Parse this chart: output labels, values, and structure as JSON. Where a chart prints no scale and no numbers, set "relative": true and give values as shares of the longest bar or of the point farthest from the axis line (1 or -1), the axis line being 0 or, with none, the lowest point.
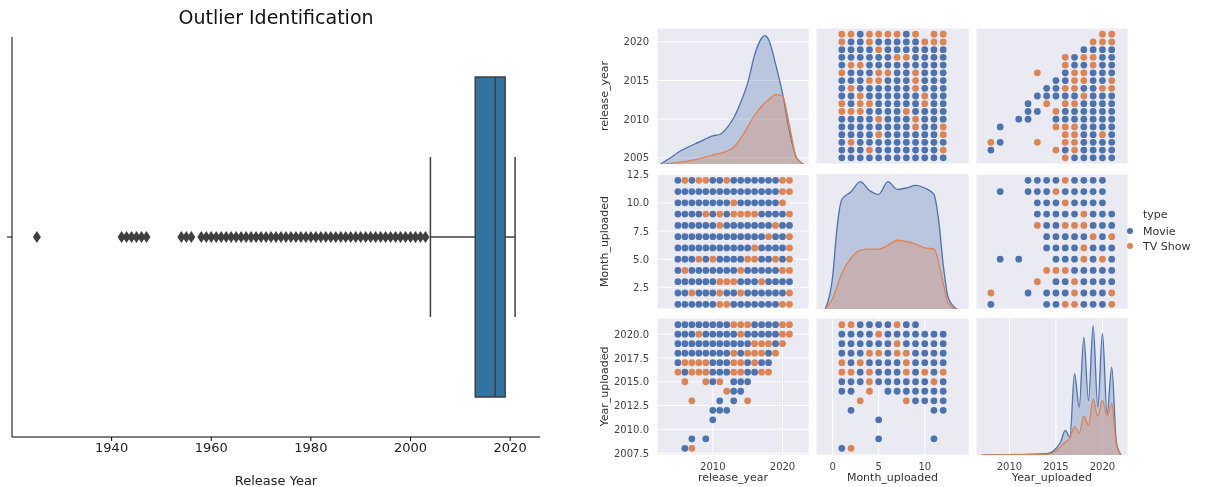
{
  "chart_data": [
    {
      "type": "box",
      "title": "Outlier Identification",
      "xlabel": "Release Year",
      "orientation": "horizontal",
      "categories": [
        null
      ],
      "color": "#3274a1",
      "xlim": [
        1920,
        2026
      ],
      "xticks": [
        1940,
        1960,
        1980,
        2000,
        2020
      ],
      "boxes": [
        {
          "low": 2004,
          "q1": 2013,
          "median": 2017,
          "q3": 2019,
          "high": 2021,
          "outliers": [
            1925,
            1942,
            1943,
            1944,
            1945,
            1946,
            1947,
            1954,
            1955,
            1956,
            1958,
            1959,
            1960,
            1961,
            1962,
            1963,
            1964,
            1965,
            1966,
            1967,
            1968,
            1969,
            1970,
            1971,
            1972,
            1973,
            1974,
            1975,
            1976,
            1977,
            1978,
            1979,
            1980,
            1981,
            1982,
            1983,
            1984,
            1985,
            1986,
            1987,
            1988,
            1989,
            1990,
            1991,
            1992,
            1993,
            1994,
            1995,
            1996,
            1997,
            1998,
            1999,
            2000,
            2001,
            2002,
            2003
          ]
        }
      ]
    },
    {
      "type": "area",
      "relative": true,
      "ylabel": "release_year",
      "xlim": [
        2002,
        2023.8
      ],
      "xticks": [
        2010,
        2020
      ],
      "y2lim": [
        2004.2,
        2021.8
      ],
      "y2ticks": [
        2005,
        2010,
        2015,
        2020
      ],
      "tick_labels": "y",
      "grid": true,
      "series": [
        {
          "color": "#4c72b0",
          "x": [
            2002.5,
            2004,
            2005,
            2006,
            2008,
            2010,
            2011,
            2012,
            2013,
            2014,
            2015,
            2016,
            2017,
            2017.5,
            2018,
            2019,
            2020,
            2021,
            2022,
            2023
          ],
          "values": [
            0,
            0.05,
            0.09,
            0.12,
            0.17,
            0.22,
            0.23,
            0.28,
            0.36,
            0.48,
            0.63,
            0.85,
            0.98,
            1,
            0.97,
            0.78,
            0.55,
            0.25,
            0.05,
            0
          ]
        },
        {
          "color": "#dd8452",
          "x": [
            2003,
            2005,
            2008,
            2010,
            2012,
            2013,
            2014,
            2015,
            2016,
            2017,
            2018,
            2019,
            2020,
            2021,
            2022,
            2023
          ],
          "values": [
            0,
            0.01,
            0.04,
            0.07,
            0.1,
            0.13,
            0.2,
            0.29,
            0.38,
            0.45,
            0.5,
            0.54,
            0.53,
            0.3,
            0.05,
            0
          ]
        }
      ]
    },
    {
      "type": "scatter",
      "marker": "circle",
      "xlim": [
        -1.8,
        14.8
      ],
      "xticks": [
        0,
        5,
        10
      ],
      "ylim": [
        2004.2,
        2021.8
      ],
      "yticks": [
        2005,
        2010,
        2015,
        2020
      ],
      "tick_labels": false,
      "grid": true,
      "series": [
        {
          "color": "#4c72b0",
          "x": [
            3,
            8,
            2,
            3,
            5,
            6,
            7,
            8,
            9,
            1,
            2,
            3,
            4,
            6,
            7,
            8,
            9,
            10,
            11,
            12,
            1,
            2,
            3,
            4,
            5,
            6,
            9,
            10,
            11,
            12,
            1,
            4,
            5,
            6,
            7,
            8,
            9,
            10,
            11,
            12,
            2,
            3,
            4,
            7,
            8,
            10,
            11,
            12,
            1,
            2,
            3,
            6,
            7,
            8,
            10,
            11,
            12,
            1,
            3,
            4,
            5,
            6,
            7,
            8,
            10,
            11,
            12,
            1,
            2,
            4,
            5,
            6,
            7,
            8,
            9,
            11,
            12,
            2,
            5,
            6,
            7,
            8,
            9,
            11,
            12,
            4,
            5,
            6,
            7,
            9,
            10,
            11,
            12,
            1,
            2,
            3,
            4,
            6,
            7,
            8,
            10,
            11,
            12,
            1,
            2,
            3,
            4,
            5,
            6,
            7,
            8,
            10,
            11,
            1,
            2,
            3,
            4,
            6,
            7,
            8,
            9,
            10,
            11,
            1,
            3,
            4,
            5,
            6,
            7,
            8,
            9,
            10,
            11,
            12,
            1,
            2,
            3,
            5,
            6,
            7,
            8,
            9,
            10,
            11,
            1,
            2,
            3,
            4,
            5,
            6,
            7,
            8,
            9,
            10,
            11,
            12
          ],
          "values": [
            2021,
            2021,
            2020,
            2020,
            2020,
            2020,
            2020,
            2020,
            2020,
            2019,
            2019,
            2019,
            2019,
            2019,
            2019,
            2019,
            2019,
            2019,
            2019,
            2019,
            2018,
            2018,
            2018,
            2018,
            2018,
            2018,
            2018,
            2018,
            2018,
            2018,
            2017,
            2017,
            2017,
            2017,
            2017,
            2017,
            2017,
            2017,
            2017,
            2017,
            2016,
            2016,
            2016,
            2016,
            2016,
            2016,
            2016,
            2016,
            2015,
            2015,
            2015,
            2015,
            2015,
            2015,
            2015,
            2015,
            2015,
            2014,
            2014,
            2014,
            2014,
            2014,
            2014,
            2014,
            2014,
            2014,
            2014,
            2013,
            2013,
            2013,
            2013,
            2013,
            2013,
            2013,
            2013,
            2013,
            2013,
            2012,
            2012,
            2012,
            2012,
            2012,
            2012,
            2012,
            2012,
            2011,
            2011,
            2011,
            2011,
            2011,
            2011,
            2011,
            2011,
            2010,
            2010,
            2010,
            2010,
            2010,
            2010,
            2010,
            2010,
            2010,
            2010,
            2009,
            2009,
            2009,
            2009,
            2009,
            2009,
            2009,
            2009,
            2009,
            2009,
            2008,
            2008,
            2008,
            2008,
            2008,
            2008,
            2008,
            2008,
            2008,
            2008,
            2007,
            2007,
            2007,
            2007,
            2007,
            2007,
            2007,
            2007,
            2007,
            2007,
            2007,
            2006,
            2006,
            2006,
            2006,
            2006,
            2006,
            2006,
            2006,
            2006,
            2006,
            2005,
            2005,
            2005,
            2005,
            2005,
            2005,
            2005,
            2005,
            2005,
            2005,
            2005,
            2005
          ]
        },
        {
          "color": "#dd8452",
          "x": [
            1,
            2,
            4,
            5,
            6,
            7,
            9,
            11,
            12,
            1,
            4,
            10,
            11,
            12,
            5,
            7,
            8,
            2,
            3,
            1,
            5,
            6,
            9,
            4,
            5,
            9,
            2,
            9,
            3,
            10,
            1,
            3,
            4,
            10,
            1,
            2,
            3,
            8,
            5,
            9,
            9,
            12,
            5,
            12,
            2,
            4,
            12
          ],
          "values": [
            2021,
            2021,
            2021,
            2021,
            2021,
            2021,
            2021,
            2021,
            2021,
            2020,
            2020,
            2020,
            2020,
            2020,
            2019,
            2018,
            2018,
            2017,
            2017,
            2016,
            2016,
            2016,
            2016,
            2015,
            2015,
            2015,
            2014,
            2014,
            2013,
            2013,
            2012,
            2012,
            2012,
            2012,
            2011,
            2011,
            2011,
            2011,
            2010,
            2010,
            2009,
            2009,
            2008,
            2008,
            2007,
            2006,
            2006
          ]
        }
      ]
    },
    {
      "type": "scatter",
      "marker": "circle",
      "xlim": [
        2006.4,
        2022.75
      ],
      "xticks": [
        2010,
        2015,
        2020
      ],
      "ylim": [
        2004.2,
        2021.8
      ],
      "yticks": [
        2005,
        2010,
        2015,
        2020
      ],
      "tick_labels": false,
      "grid": true,
      "series": [
        {
          "color": "#4c72b0",
          "x": [
            2018,
            2019,
            2020,
            2021,
            2017,
            2020,
            2021,
            2017,
            2018,
            2020,
            2021,
            2016,
            2019,
            2020,
            2021,
            2015,
            2016,
            2019,
            2020,
            2014,
            2015,
            2018,
            2019,
            2013,
            2014,
            2015,
            2016,
            2017,
            2019,
            2020,
            2021,
            2012,
            2018,
            2019,
            2020,
            2021,
            2012,
            2013,
            2016,
            2017,
            2018,
            2019,
            2020,
            2021,
            2011,
            2012,
            2015,
            2016,
            2017,
            2018,
            2019,
            2020,
            2021,
            2009,
            2018,
            2019,
            2020,
            2021,
            2018,
            2019,
            2021,
            2009,
            2018,
            2019,
            2020,
            2021,
            2008,
            2016,
            2018,
            2019,
            2020,
            2021,
            2017,
            2018,
            2019,
            2020,
            2021
          ],
          "values": [
            2019,
            2019,
            2019,
            2019,
            2018,
            2018,
            2018,
            2017,
            2017,
            2017,
            2017,
            2016,
            2016,
            2016,
            2016,
            2015,
            2015,
            2015,
            2015,
            2014,
            2014,
            2014,
            2014,
            2013,
            2013,
            2013,
            2013,
            2013,
            2013,
            2013,
            2013,
            2012,
            2012,
            2012,
            2012,
            2012,
            2011,
            2011,
            2011,
            2011,
            2011,
            2011,
            2011,
            2011,
            2010,
            2010,
            2010,
            2010,
            2010,
            2010,
            2010,
            2010,
            2010,
            2009,
            2009,
            2009,
            2009,
            2009,
            2008,
            2008,
            2008,
            2007,
            2007,
            2007,
            2007,
            2007,
            2006,
            2006,
            2006,
            2006,
            2006,
            2006,
            2005,
            2005,
            2005,
            2005,
            2005
          ]
        },
        {
          "color": "#dd8452",
          "x": [
            2020,
            2021,
            2019,
            2020,
            2021,
            2016,
            2018,
            2019,
            2016,
            2019,
            2013,
            2017,
            2018,
            2017,
            2018,
            2021,
            2016,
            2017,
            2020,
            2021,
            2018,
            2014,
            2016,
            2017,
            2015,
            2015,
            2016,
            2017,
            2016,
            2017,
            2020,
            2008,
            2013,
            2016,
            2017,
            2015,
            2017,
            2016
          ],
          "values": [
            2021,
            2021,
            2020,
            2020,
            2020,
            2018,
            2018,
            2018,
            2017,
            2017,
            2016,
            2016,
            2016,
            2015,
            2015,
            2015,
            2014,
            2014,
            2014,
            2014,
            2013,
            2012,
            2012,
            2012,
            2011,
            2009,
            2009,
            2009,
            2008,
            2008,
            2008,
            2007,
            2007,
            2007,
            2007,
            2006,
            2006,
            2005
          ]
        }
      ]
    },
    {
      "type": "scatter",
      "marker": "circle",
      "ylabel": "Month_uploaded",
      "xlim": [
        2002,
        2023.8
      ],
      "xticks": [
        2010,
        2020
      ],
      "ylim": [
        0.58,
        12.56
      ],
      "yticks": [
        2.5,
        {
          "value": 5,
          "label": "5.0"
        },
        7.5,
        {
          "value": 10,
          "label": "10.0"
        },
        12.5
      ],
      "tick_labels": "y",
      "grid": true,
      "series": [
        {
          "color": "#4c72b0",
          "x": [
            2005,
            2007,
            2010,
            2011,
            2013,
            2014,
            2015,
            2016,
            2017,
            2018,
            2019,
            2005,
            2006,
            2007,
            2008,
            2009,
            2010,
            2011,
            2012,
            2013,
            2014,
            2015,
            2016,
            2017,
            2018,
            2019,
            2005,
            2006,
            2007,
            2008,
            2009,
            2010,
            2011,
            2012,
            2014,
            2015,
            2016,
            2017,
            2018,
            2019,
            2005,
            2006,
            2007,
            2008,
            2010,
            2012,
            2017,
            2018,
            2019,
            2020,
            2005,
            2006,
            2007,
            2008,
            2009,
            2010,
            2012,
            2013,
            2014,
            2015,
            2016,
            2017,
            2018,
            2020,
            2021,
            2005,
            2006,
            2007,
            2008,
            2009,
            2010,
            2011,
            2012,
            2013,
            2014,
            2015,
            2016,
            2017,
            2019,
            2020,
            2005,
            2006,
            2007,
            2008,
            2009,
            2010,
            2011,
            2012,
            2013,
            2014,
            2015,
            2017,
            2018,
            2019,
            2020,
            2005,
            2006,
            2007,
            2009,
            2011,
            2012,
            2013,
            2014,
            2017,
            2018,
            2020,
            2005,
            2007,
            2008,
            2009,
            2010,
            2011,
            2012,
            2013,
            2015,
            2016,
            2017,
            2018,
            2019,
            2005,
            2006,
            2007,
            2008,
            2009,
            2010,
            2014,
            2015,
            2016,
            2018,
            2019,
            2020,
            2021,
            2005,
            2006,
            2008,
            2009,
            2010,
            2012,
            2013,
            2015,
            2016,
            2017,
            2018,
            2019,
            2020,
            2005,
            2006,
            2007,
            2008,
            2009,
            2010,
            2013,
            2014,
            2015,
            2016,
            2017,
            2018,
            2019
          ],
          "values": [
            12,
            12,
            12,
            12,
            12,
            12,
            12,
            12,
            12,
            12,
            12,
            11,
            11,
            11,
            11,
            11,
            11,
            11,
            11,
            11,
            11,
            11,
            11,
            11,
            11,
            11,
            10,
            10,
            10,
            10,
            10,
            10,
            10,
            10,
            10,
            10,
            10,
            10,
            10,
            10,
            9,
            9,
            9,
            9,
            9,
            9,
            9,
            9,
            9,
            9,
            8,
            8,
            8,
            8,
            8,
            8,
            8,
            8,
            8,
            8,
            8,
            8,
            8,
            8,
            8,
            7,
            7,
            7,
            7,
            7,
            7,
            7,
            7,
            7,
            7,
            7,
            7,
            7,
            7,
            7,
            6,
            6,
            6,
            6,
            6,
            6,
            6,
            6,
            6,
            6,
            6,
            6,
            6,
            6,
            6,
            5,
            5,
            5,
            5,
            5,
            5,
            5,
            5,
            5,
            5,
            5,
            4,
            4,
            4,
            4,
            4,
            4,
            4,
            4,
            4,
            4,
            4,
            4,
            4,
            3,
            3,
            3,
            3,
            3,
            3,
            3,
            3,
            3,
            3,
            3,
            3,
            3,
            2,
            2,
            2,
            2,
            2,
            2,
            2,
            2,
            2,
            2,
            2,
            2,
            2,
            1,
            1,
            1,
            1,
            1,
            1,
            1,
            1,
            1,
            1,
            1,
            1,
            1
          ]
        },
        {
          "color": "#dd8452",
          "x": [
            2006,
            2008,
            2009,
            2012,
            2020,
            2021,
            2020,
            2021,
            2013,
            2020,
            2009,
            2011,
            2013,
            2014,
            2015,
            2016,
            2021,
            2011,
            2019,
            2018,
            2021,
            2016,
            2021,
            2008,
            2010,
            2015,
            2016,
            2019,
            2021,
            2006,
            2014,
            2020,
            2021,
            2011,
            2012,
            2013,
            2017,
            2007,
            2011,
            2014,
            2021,
            2011,
            2012,
            2020,
            2021
          ],
          "values": [
            12,
            12,
            12,
            12,
            12,
            12,
            11,
            11,
            10,
            10,
            9,
            9,
            9,
            9,
            9,
            9,
            9,
            8,
            8,
            7,
            7,
            6,
            6,
            5,
            5,
            5,
            5,
            5,
            5,
            4,
            4,
            4,
            4,
            3,
            3,
            3,
            3,
            2,
            2,
            2,
            2,
            1,
            1,
            1,
            1
          ]
        }
      ]
    },
    {
      "type": "area",
      "relative": true,
      "xlim": [
        -1.8,
        14.8
      ],
      "xticks": [
        0,
        5,
        10
      ],
      "tick_labels": false,
      "grid": "x",
      "series": [
        {
          "color": "#4c72b0",
          "x": [
            -0.8,
            0,
            0.5,
            1,
            2,
            3,
            4,
            5,
            6,
            7,
            8,
            9,
            10,
            11,
            11.5,
            12,
            12.5,
            13,
            13.5
          ],
          "values": [
            0,
            0.25,
            0.65,
            0.86,
            0.92,
            1,
            0.93,
            0.9,
            1,
            0.94,
            0.95,
            0.97,
            0.95,
            0.9,
            0.7,
            0.35,
            0.1,
            0.03,
            0
          ]
        },
        {
          "color": "#dd8452",
          "x": [
            -0.8,
            0,
            1,
            2,
            3,
            4,
            5,
            6,
            7,
            8,
            9,
            10,
            11,
            12,
            12.5,
            13,
            13.5
          ],
          "values": [
            0,
            0.08,
            0.28,
            0.4,
            0.46,
            0.47,
            0.47,
            0.5,
            0.54,
            0.53,
            0.51,
            0.48,
            0.47,
            0.2,
            0.05,
            0.01,
            0
          ]
        }
      ]
    },
    {
      "type": "scatter",
      "marker": "circle",
      "legend": "right",
      "legend_title": "type",
      "xlim": [
        2006.4,
        2022.75
      ],
      "xticks": [
        2010,
        2015,
        2020
      ],
      "ylim": [
        0.58,
        12.56
      ],
      "yticks": [
        2.5,
        5,
        7.5,
        10,
        12.5
      ],
      "tick_labels": false,
      "grid": true,
      "series": [
        {
          "name": "Movie",
          "color": "#4c72b0",
          "x": [
            2012,
            2013,
            2014,
            2015,
            2017,
            2018,
            2019,
            2020,
            2009,
            2012,
            2013,
            2014,
            2016,
            2017,
            2018,
            2019,
            2020,
            2013,
            2014,
            2015,
            2017,
            2018,
            2019,
            2020,
            2013,
            2014,
            2015,
            2016,
            2017,
            2019,
            2020,
            2021,
            2014,
            2015,
            2019,
            2020,
            2021,
            2014,
            2015,
            2016,
            2017,
            2018,
            2020,
            2014,
            2015,
            2016,
            2017,
            2019,
            2020,
            2021,
            2009,
            2011,
            2015,
            2016,
            2017,
            2019,
            2021,
            2017,
            2018,
            2019,
            2020,
            2021,
            2015,
            2016,
            2018,
            2019,
            2020,
            2021,
            2012,
            2014,
            2015,
            2016,
            2018,
            2019,
            2020,
            2008,
            2014,
            2015,
            2018,
            2019,
            2020
          ],
          "values": [
            12,
            12,
            12,
            12,
            12,
            12,
            12,
            12,
            11,
            11,
            11,
            11,
            11,
            11,
            11,
            11,
            11,
            10,
            10,
            10,
            10,
            10,
            10,
            10,
            9,
            9,
            9,
            9,
            9,
            9,
            9,
            9,
            8,
            8,
            8,
            8,
            8,
            7,
            7,
            7,
            7,
            7,
            7,
            6,
            6,
            6,
            6,
            6,
            6,
            6,
            5,
            5,
            5,
            5,
            5,
            5,
            5,
            4,
            4,
            4,
            4,
            4,
            3,
            3,
            3,
            3,
            3,
            3,
            2,
            2,
            2,
            2,
            2,
            2,
            2,
            1,
            1,
            1,
            1,
            1,
            1
          ]
        },
        {
          "name": "TV Show",
          "color": "#dd8452",
          "x": [
            2016,
            2015,
            2016,
            2018,
            2013,
            2016,
            2017,
            2018,
            2019,
            2021,
            2018,
            2018,
            2020,
            2014,
            2015,
            2016,
            2013,
            2017,
            2008,
            2017,
            2021,
            2016,
            2017,
            2021
          ],
          "values": [
            12,
            11,
            10,
            9,
            8,
            8,
            8,
            8,
            7,
            7,
            6,
            5,
            5,
            4,
            4,
            4,
            3,
            3,
            2,
            2,
            2,
            1,
            1,
            1
          ]
        }
      ]
    },
    {
      "type": "scatter",
      "marker": "circle",
      "xlabel": "release_year",
      "ylabel": "Year_uploaded",
      "xlim": [
        2002,
        2023.8
      ],
      "xticks": [
        2010,
        2020
      ],
      "ylim": [
        2007.3,
        2021.7
      ],
      "yticks": [
        2007.5,
        {
          "value": 2010,
          "label": "2010.0"
        },
        2012.5,
        {
          "value": 2015,
          "label": "2015.0"
        },
        2017.5,
        {
          "value": 2020,
          "label": "2020.0"
        }
      ],
      "grid": true,
      "series": [
        {
          "color": "#4c72b0",
          "x": [
            2005,
            2006,
            2007,
            2008,
            2009,
            2010,
            2011,
            2012,
            2016,
            2017,
            2018,
            2019,
            2005,
            2006,
            2007,
            2009,
            2010,
            2011,
            2012,
            2013,
            2015,
            2016,
            2017,
            2018,
            2019,
            2005,
            2006,
            2007,
            2008,
            2009,
            2010,
            2011,
            2012,
            2013,
            2014,
            2015,
            2019,
            2005,
            2006,
            2007,
            2008,
            2009,
            2010,
            2011,
            2012,
            2014,
            2018,
            2005,
            2010,
            2011,
            2012,
            2015,
            2017,
            2018,
            2006,
            2010,
            2011,
            2012,
            2015,
            2016,
            2010,
            2013,
            2014,
            2015,
            2013,
            2014,
            2011,
            2013,
            2010,
            2011,
            2012,
            2010,
            2007,
            2009,
            2006
          ],
          "values": [
            2021,
            2021,
            2021,
            2021,
            2021,
            2021,
            2021,
            2021,
            2021,
            2021,
            2021,
            2021,
            2020,
            2020,
            2020,
            2020,
            2020,
            2020,
            2020,
            2020,
            2020,
            2020,
            2020,
            2020,
            2020,
            2019,
            2019,
            2019,
            2019,
            2019,
            2019,
            2019,
            2019,
            2019,
            2019,
            2019,
            2019,
            2018,
            2018,
            2018,
            2018,
            2018,
            2018,
            2018,
            2018,
            2018,
            2018,
            2017,
            2017,
            2017,
            2017,
            2017,
            2017,
            2017,
            2016,
            2016,
            2016,
            2016,
            2016,
            2016,
            2015,
            2015,
            2015,
            2015,
            2014,
            2014,
            2013,
            2013,
            2012,
            2012,
            2012,
            2011,
            2009,
            2009,
            2008
          ]
        },
        {
          "color": "#dd8452",
          "x": [
            2013,
            2014,
            2015,
            2020,
            2021,
            2008,
            2014,
            2020,
            2021,
            2016,
            2017,
            2018,
            2020,
            2013,
            2015,
            2016,
            2017,
            2019,
            2006,
            2007,
            2008,
            2009,
            2013,
            2014,
            2016,
            2005,
            2007,
            2008,
            2009,
            2013,
            2014,
            2017,
            2018,
            2006,
            2009,
            2011,
            2012,
            2007,
            2015,
            2007
          ],
          "values": [
            2021,
            2021,
            2021,
            2021,
            2021,
            2020,
            2020,
            2020,
            2020,
            2019,
            2019,
            2019,
            2019,
            2018,
            2018,
            2018,
            2018,
            2018,
            2017,
            2017,
            2017,
            2017,
            2017,
            2017,
            2017,
            2016,
            2016,
            2016,
            2016,
            2016,
            2016,
            2016,
            2016,
            2015,
            2015,
            2015,
            2014,
            2013,
            2013,
            2008
          ]
        }
      ]
    },
    {
      "type": "scatter",
      "marker": "circle",
      "xlabel": "Month_uploaded",
      "xlim": [
        -1.8,
        14.8
      ],
      "xticks": [
        0,
        5,
        10
      ],
      "ylim": [
        2007.3,
        2021.7
      ],
      "yticks": [
        2007.5,
        2010,
        2012.5,
        2015,
        2017.5,
        2020
      ],
      "tick_labels": "x",
      "grid": true,
      "series": [
        {
          "color": "#4c72b0",
          "x": [
            3,
            4,
            5,
            6,
            8,
            9,
            1,
            2,
            3,
            4,
            6,
            7,
            8,
            9,
            10,
            11,
            12,
            1,
            2,
            3,
            4,
            5,
            6,
            8,
            9,
            10,
            11,
            12,
            1,
            2,
            3,
            6,
            9,
            10,
            11,
            12,
            2,
            4,
            5,
            6,
            7,
            9,
            10,
            11,
            12,
            3,
            5,
            6,
            7,
            9,
            11,
            1,
            2,
            3,
            5,
            6,
            7,
            8,
            9,
            10,
            12,
            1,
            2,
            6,
            7,
            8,
            9,
            10,
            11,
            12,
            9,
            10,
            11,
            12,
            2,
            11,
            12,
            5,
            5,
            11,
            1
          ],
          "values": [
            2021,
            2021,
            2021,
            2021,
            2021,
            2021,
            2020,
            2020,
            2020,
            2020,
            2020,
            2020,
            2020,
            2020,
            2020,
            2020,
            2020,
            2019,
            2019,
            2019,
            2019,
            2019,
            2019,
            2019,
            2019,
            2019,
            2019,
            2019,
            2018,
            2018,
            2018,
            2018,
            2018,
            2018,
            2018,
            2018,
            2017,
            2017,
            2017,
            2017,
            2017,
            2017,
            2017,
            2017,
            2017,
            2016,
            2016,
            2016,
            2016,
            2016,
            2016,
            2015,
            2015,
            2015,
            2015,
            2015,
            2015,
            2015,
            2015,
            2015,
            2015,
            2014,
            2014,
            2014,
            2014,
            2014,
            2014,
            2014,
            2014,
            2014,
            2013,
            2013,
            2013,
            2013,
            2012,
            2012,
            2012,
            2011,
            2009,
            2009,
            2008
          ]
        },
        {
          "color": "#dd8452",
          "x": [
            1,
            2,
            7,
            5,
            7,
            4,
            5,
            7,
            8,
            1,
            3,
            8,
            1,
            2,
            4,
            8,
            10,
            12,
            4,
            11,
            4,
            3,
            8,
            2
          ],
          "values": [
            2021,
            2021,
            2021,
            2020,
            2019,
            2018,
            2018,
            2018,
            2018,
            2017,
            2017,
            2017,
            2016,
            2016,
            2016,
            2016,
            2016,
            2016,
            2015,
            2015,
            2014,
            2013,
            2013,
            2008
          ]
        }
      ]
    },
    {
      "type": "area",
      "relative": true,
      "xlabel": "Year_uploaded",
      "xlim": [
        2006.4,
        2022.75
      ],
      "xticks": [
        2010,
        2015,
        2020
      ],
      "tick_labels": "x",
      "grid": "x",
      "series": [
        {
          "color": "#4c72b0",
          "x": [
            2007,
            2014,
            2015,
            2015.5,
            2016,
            2016.5,
            2017,
            2017.5,
            2018,
            2018.5,
            2019,
            2019.5,
            2020,
            2020.5,
            2021,
            2021.5,
            2022
          ],
          "values": [
            0,
            0.01,
            0.05,
            0.1,
            0.19,
            0.14,
            0.63,
            0.37,
            0.91,
            0.42,
            1,
            0.37,
            0.94,
            0.32,
            0.68,
            0.1,
            0
          ]
        },
        {
          "color": "#dd8452",
          "x": [
            2007,
            2014,
            2015,
            2016,
            2016.5,
            2017,
            2017.5,
            2018,
            2018.5,
            2019,
            2019.5,
            2020,
            2020.5,
            2021,
            2021.5,
            2022
          ],
          "values": [
            0,
            0.005,
            0.03,
            0.1,
            0.13,
            0.22,
            0.17,
            0.3,
            0.23,
            0.43,
            0.3,
            0.42,
            0.3,
            0.4,
            0.08,
            0
          ]
        }
      ]
    }
  ]
}
